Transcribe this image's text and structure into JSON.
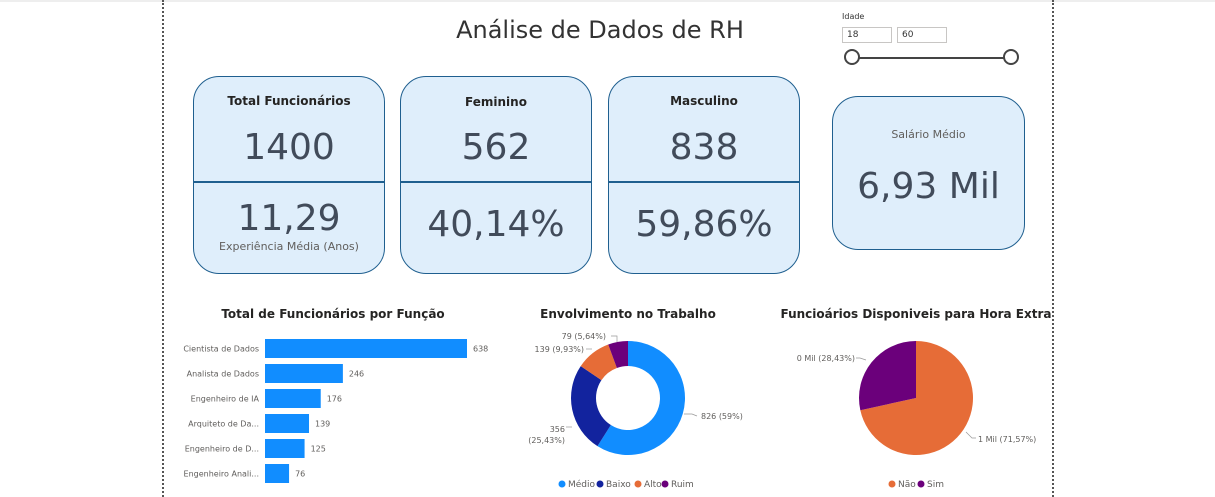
{
  "dashboard": {
    "title": "Análise de Dados de RH"
  },
  "slicer": {
    "label": "Idade",
    "min": "18",
    "max": "60",
    "range_fraction": [
      0,
      1
    ]
  },
  "cards": {
    "total": {
      "label": "Total Funcionários",
      "value": "1400",
      "sub_value": "11,29",
      "sub_label": "Experiência Média (Anos)"
    },
    "female": {
      "label": "Feminino",
      "value": "562",
      "pct": "40,14%"
    },
    "male": {
      "label": "Masculino",
      "value": "838",
      "pct": "59,86%"
    },
    "salary": {
      "label": "Salário Médio",
      "value": "6,93 Mil"
    }
  },
  "chart_data": [
    {
      "type": "bar",
      "orientation": "horizontal",
      "title": "Total de Funcionários por Função",
      "categories": [
        "Cientista de Dados",
        "Analista de Dados",
        "Engenheiro de IA",
        "Arquiteto de Da...",
        "Engenheiro de D...",
        "Engenheiro Anali..."
      ],
      "values": [
        638,
        246,
        176,
        139,
        125,
        76
      ],
      "color": "#118dff"
    },
    {
      "type": "pie",
      "donut": true,
      "title": "Envolvimento no Trabalho",
      "labels": [
        "Médio",
        "Baixo",
        "Alto",
        "Ruim"
      ],
      "values": [
        826,
        356,
        139,
        79
      ],
      "data_labels": [
        "826 (59%)",
        "356 (25,43%)",
        "139 (9,93%)",
        "79 (5,64%)"
      ],
      "colors": [
        "#118dff",
        "#12239e",
        "#e66c37",
        "#6b007b"
      ],
      "legend_position": "bottom"
    },
    {
      "type": "pie",
      "donut": false,
      "title": "Funcioários Disponiveis para Hora Extra",
      "labels": [
        "Não",
        "Sim"
      ],
      "values": [
        71.57,
        28.43
      ],
      "data_labels": [
        "1 Mil (71,57%)",
        "0 Mil (28,43%)"
      ],
      "colors": [
        "#e66c37",
        "#6b007b"
      ],
      "legend_position": "bottom"
    }
  ]
}
